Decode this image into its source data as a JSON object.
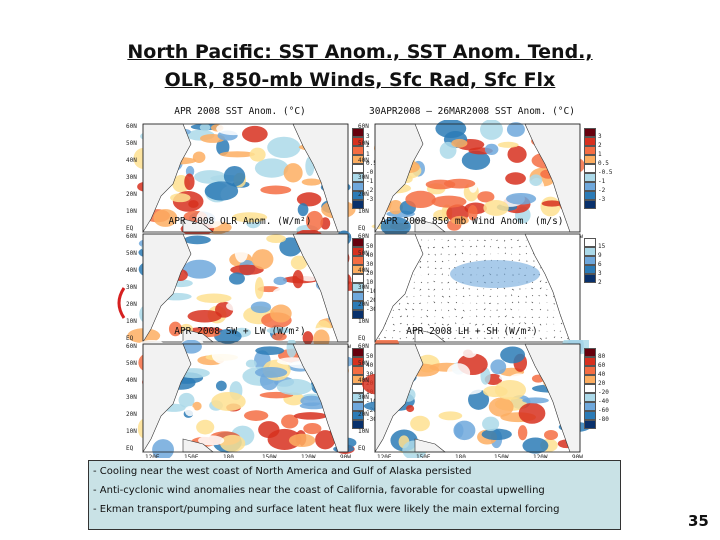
{
  "slide": {
    "title_line1": "North Pacific: SST Anom., SST Anom. Tend.,",
    "title_line2": "OLR, 850-mb Winds, Sfc Rad, Sfc Flx",
    "page_number": "35"
  },
  "panels": [
    {
      "title": "APR 2008 SST Anom. (°C)",
      "cbar_labels": [
        "3",
        "2",
        "1",
        "0.5",
        "-0.5",
        "-1",
        "-2",
        "-3"
      ]
    },
    {
      "title": "30APR2008 – 26MAR2008 SST Anom. (°C)",
      "cbar_labels": [
        "3",
        "2",
        "1",
        "0.5",
        "-0.5",
        "-1",
        "-2",
        "-3"
      ]
    },
    {
      "title": "APR 2008 OLR Anom. (W/m²)",
      "cbar_labels": [
        "50",
        "40",
        "30",
        "20",
        "10",
        "-10",
        "-20",
        "-30"
      ]
    },
    {
      "title": "APR 2008 850 mb Wind Anom. (m/s)",
      "cbar_labels": [
        "15",
        "9",
        "6",
        "3",
        "2"
      ]
    },
    {
      "title": "APR 2008 SW + LW (W/m²)",
      "cbar_labels": [
        "50",
        "40",
        "30",
        "20",
        "10",
        "-10",
        "-20",
        "-30"
      ]
    },
    {
      "title": "APR 2008 LH + SH (W/m²)",
      "cbar_labels": [
        "80",
        "60",
        "40",
        "20",
        "-20",
        "-40",
        "-60",
        "-80"
      ]
    }
  ],
  "axes": {
    "lat_labels": [
      "60N",
      "50N",
      "40N",
      "30N",
      "20N",
      "10N",
      "EQ"
    ],
    "lon_labels": [
      "120E",
      "150E",
      "180",
      "150W",
      "120W",
      "90W"
    ]
  },
  "notes": [
    "- Cooling near the west coast of North America and Gulf of Alaska persisted",
    "- Anti-cyclonic wind anomalies near the coast of California, favorable for coastal upwelling",
    "- Ekman transport/pumping and surface latent heat flux were likely the main external forcing"
  ],
  "colors": {
    "warm": "#d7301f",
    "warm_light": "#fdae61",
    "neutral": "#ffffff",
    "cool_light": "#abd9e9",
    "cool": "#2c7bb6",
    "notes_bg": "#c9e2e6",
    "bracket": "#d62020"
  }
}
